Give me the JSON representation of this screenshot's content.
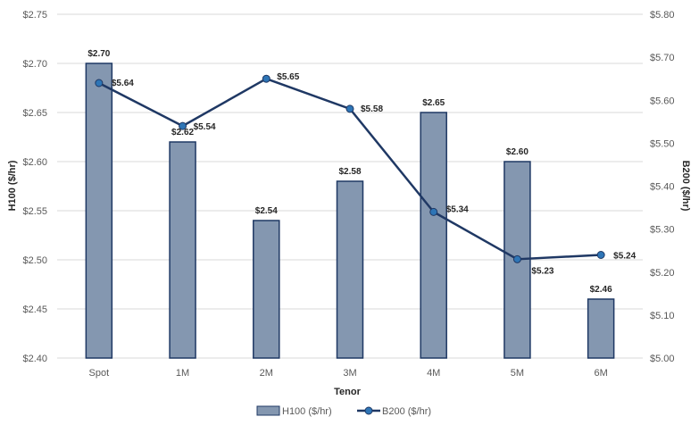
{
  "chart_data": {
    "type": "bar",
    "categories": [
      "Spot",
      "1M",
      "2M",
      "3M",
      "4M",
      "5M",
      "6M"
    ],
    "series": [
      {
        "name": "H100 ($/hr)",
        "type": "bar",
        "axis": "left",
        "values": [
          2.7,
          2.62,
          2.54,
          2.58,
          2.65,
          2.6,
          2.46
        ],
        "labels": [
          "$2.70",
          "$2.62",
          "$2.54",
          "$2.58",
          "$2.65",
          "$2.60",
          "$2.46"
        ]
      },
      {
        "name": "B200 ($/hr)",
        "type": "line",
        "axis": "right",
        "values": [
          5.64,
          5.54,
          5.65,
          5.58,
          5.34,
          5.23,
          5.24
        ],
        "labels": [
          "$5.64",
          "$5.54",
          "$5.65",
          "$5.58",
          "$5.34",
          "$5.23",
          "$5.24"
        ]
      }
    ],
    "xlabel": "Tenor",
    "ylabel": "H100 ($/hr)",
    "y2label": "B200 ($/hr)",
    "ylim": [
      2.4,
      2.75
    ],
    "y2lim": [
      5.0,
      5.8
    ],
    "yticks": [
      "$2.40",
      "$2.45",
      "$2.50",
      "$2.55",
      "$2.60",
      "$2.65",
      "$2.70",
      "$2.75"
    ],
    "y2ticks": [
      "$5.00",
      "$5.10",
      "$5.20",
      "$5.30",
      "$5.40",
      "$5.50",
      "$5.60",
      "$5.70",
      "$5.80"
    ],
    "grid": true,
    "legend_position": "bottom",
    "colors": {
      "bar_fill": "#8497b0",
      "bar_stroke": "#1f3864",
      "line": "#1f3864",
      "marker_fill": "#2e75b6",
      "grid": "#d9d9d9"
    }
  }
}
